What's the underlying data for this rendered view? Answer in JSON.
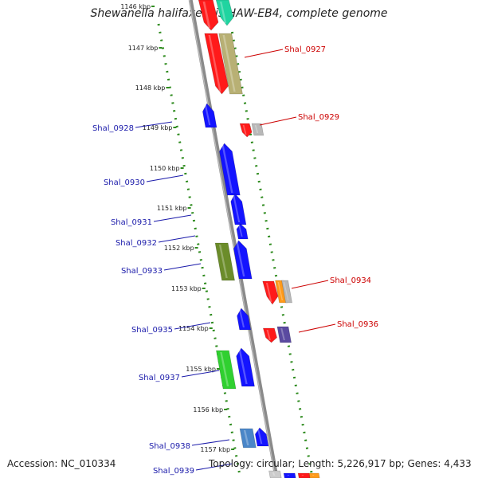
{
  "title": "Shewanella halifaxensis HAW-EB4, complete genome",
  "accession": "Accession: NC_010334",
  "topology": "Topology: circular; Length: 5,226,917 bp; Genes: 4,433",
  "kbp_ticks": [
    "1146 kbp",
    "1147 kbp",
    "1148 kbp",
    "1149 kbp",
    "1150 kbp",
    "1151 kbp",
    "1152 kbp",
    "1153 kbp",
    "1154 kbp",
    "1155 kbp",
    "1156 kbp",
    "1157 kbp"
  ],
  "gene_labels": [
    {
      "name": "Shal_0927",
      "strand": "reverse"
    },
    {
      "name": "Shal_0928",
      "strand": "forward"
    },
    {
      "name": "Shal_0929",
      "strand": "reverse"
    },
    {
      "name": "Shal_0930",
      "strand": "forward"
    },
    {
      "name": "Shal_0931",
      "strand": "forward"
    },
    {
      "name": "Shal_0932",
      "strand": "forward"
    },
    {
      "name": "Shal_0933",
      "strand": "forward"
    },
    {
      "name": "Shal_0934",
      "strand": "reverse"
    },
    {
      "name": "Shal_0935",
      "strand": "forward"
    },
    {
      "name": "Shal_0936",
      "strand": "reverse"
    },
    {
      "name": "Shal_0937",
      "strand": "forward"
    },
    {
      "name": "Shal_0938",
      "strand": "forward"
    },
    {
      "name": "Shal_0939",
      "strand": "forward"
    }
  ],
  "colors": {
    "forward_label": "#1a1aaa",
    "reverse_label": "#cc0000",
    "backbone": "#8a8a8a",
    "dots": "#2e8b1e"
  }
}
